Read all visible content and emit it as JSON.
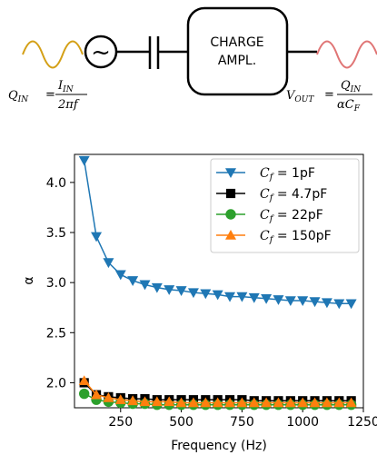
{
  "diagram": {
    "block_label_line1": "CHARGE",
    "block_label_line2": "AMPL.",
    "source_symbol": "~",
    "input_eq": {
      "lhs": "Q",
      "lhs_sub": "IN",
      "num": "I",
      "num_sub": "IN",
      "den": "2πf"
    },
    "output_eq": {
      "lhs": "V",
      "lhs_sub": "OUT",
      "num": "Q",
      "num_sub": "IN",
      "den": "αC",
      "den_sub": "F"
    },
    "colors": {
      "input_wave": "#d4a017",
      "output_wave": "#e07575",
      "stroke": "#000000"
    },
    "icons": [
      "ac-source-icon",
      "capacitor-icon",
      "input-sine-wave-icon",
      "output-sine-wave-icon"
    ]
  },
  "chart_data": {
    "type": "line",
    "xlabel": "Frequency (Hz)",
    "ylabel": "α",
    "xlim": [
      60,
      1250
    ],
    "ylim": [
      1.75,
      4.28
    ],
    "xticks": [
      250,
      500,
      750,
      1000,
      1250
    ],
    "yticks": [
      2.0,
      2.5,
      3.0,
      3.5,
      4.0
    ],
    "grid": false,
    "legend_position": "top-right",
    "x": [
      100,
      150,
      200,
      250,
      300,
      350,
      400,
      450,
      500,
      550,
      600,
      650,
      700,
      750,
      800,
      850,
      900,
      950,
      1000,
      1050,
      1100,
      1150,
      1200
    ],
    "series": [
      {
        "name_prefix": "C",
        "name_sub": "f",
        "name_value": " = 1pF",
        "color": "#1f77b4",
        "marker": "triangle-down",
        "values": [
          4.22,
          3.46,
          3.2,
          3.08,
          3.02,
          2.98,
          2.95,
          2.93,
          2.92,
          2.9,
          2.89,
          2.88,
          2.86,
          2.86,
          2.85,
          2.84,
          2.83,
          2.82,
          2.82,
          2.81,
          2.8,
          2.79,
          2.79
        ]
      },
      {
        "name_prefix": "C",
        "name_sub": "f",
        "name_value": " = 4.7pF",
        "color": "#000000",
        "marker": "square",
        "values": [
          2.0,
          1.88,
          1.86,
          1.85,
          1.84,
          1.84,
          1.83,
          1.83,
          1.83,
          1.83,
          1.83,
          1.83,
          1.83,
          1.83,
          1.82,
          1.82,
          1.82,
          1.82,
          1.82,
          1.82,
          1.82,
          1.82,
          1.82
        ]
      },
      {
        "name_prefix": "C",
        "name_sub": "f",
        "name_value": " = 22pF",
        "color": "#2ca02c",
        "marker": "circle",
        "values": [
          1.89,
          1.83,
          1.81,
          1.8,
          1.79,
          1.79,
          1.78,
          1.78,
          1.78,
          1.78,
          1.78,
          1.78,
          1.78,
          1.78,
          1.78,
          1.78,
          1.78,
          1.78,
          1.78,
          1.78,
          1.78,
          1.78,
          1.78
        ]
      },
      {
        "name_prefix": "C",
        "name_sub": "f",
        "name_value": " = 150pF",
        "color": "#ff7f0e",
        "marker": "triangle-up",
        "values": [
          2.02,
          1.88,
          1.85,
          1.83,
          1.82,
          1.81,
          1.81,
          1.81,
          1.8,
          1.8,
          1.8,
          1.8,
          1.8,
          1.8,
          1.8,
          1.8,
          1.8,
          1.8,
          1.8,
          1.8,
          1.8,
          1.8,
          1.8
        ]
      }
    ]
  }
}
